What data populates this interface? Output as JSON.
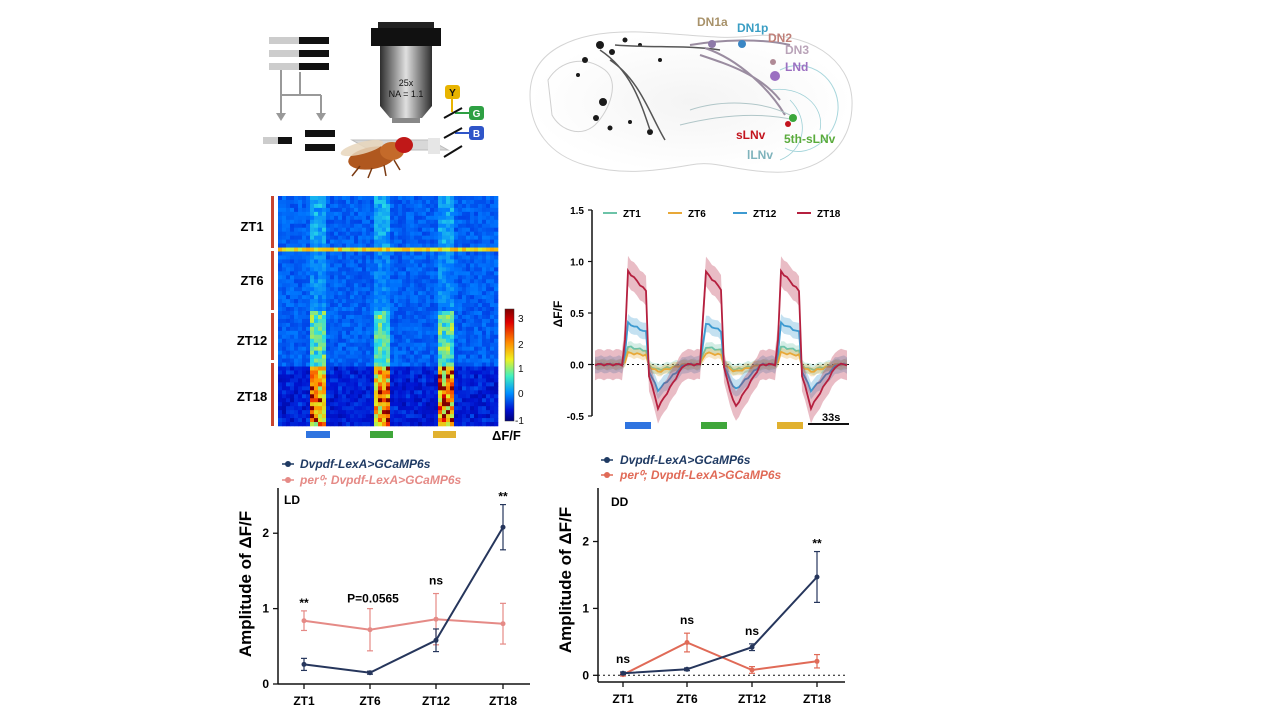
{
  "schematic": {
    "objective_mag": "25x",
    "objective_na": "NA = 1.1",
    "light_labels": [
      "Y",
      "G",
      "B"
    ],
    "light_colors": [
      "#e8b400",
      "#2ea043",
      "#2f55c8"
    ]
  },
  "brain": {
    "labels": [
      {
        "text": "DN1a",
        "color": "#a8926a"
      },
      {
        "text": "DN1p",
        "color": "#3a9ec4"
      },
      {
        "text": "DN2",
        "color": "#c07f78"
      },
      {
        "text": "DN3",
        "color": "#b9a3b8"
      },
      {
        "text": "LNd",
        "color": "#9b6fc1"
      },
      {
        "text": "sLNv",
        "color": "#c3141e"
      },
      {
        "text": "5th-sLNv",
        "color": "#5aab3c"
      },
      {
        "text": "lLNv",
        "color": "#7fb3bc"
      }
    ]
  },
  "heatmap": {
    "row_labels": [
      "ZT1",
      "ZT6",
      "ZT12",
      "ZT18"
    ],
    "colorbar_ticks": [
      "3",
      "2",
      "1",
      "0",
      "-1"
    ],
    "colorbar_label": "ΔF/F",
    "stim_colors": [
      "#2f74e0",
      "#3fa63a",
      "#e1b12f"
    ]
  },
  "trace_chart": {
    "chart_data": {
      "type": "line",
      "ylabel": "ΔF/F",
      "ylim": [
        -0.5,
        1.5
      ],
      "yticks": [
        "1.5",
        "1.0",
        "0.5",
        "0.0",
        "-0.5"
      ],
      "scale_bar": "33s",
      "series": [
        {
          "name": "ZT1",
          "color": "#6cc3a8"
        },
        {
          "name": "ZT6",
          "color": "#e8a838"
        },
        {
          "name": "ZT12",
          "color": "#3d9ad1"
        },
        {
          "name": "ZT18",
          "color": "#b5203f"
        }
      ],
      "stim_colors": [
        "#2f74e0",
        "#3fa63a",
        "#e1b12f"
      ]
    }
  },
  "ld_chart": {
    "legend": [
      {
        "text": "Dvpdf-LexA>GCaMP6s",
        "color": "#1f3a63"
      },
      {
        "text": "per⁰; Dvpdf-LexA>GCaMP6s",
        "color": "#e58a86"
      }
    ],
    "chart_data": {
      "type": "line",
      "panel": "LD",
      "ylabel": "Amplitude of ΔF/F",
      "categories": [
        "ZT1",
        "ZT6",
        "ZT12",
        "ZT18"
      ],
      "ylim": [
        0,
        2.6
      ],
      "yticks": [
        "0",
        "1",
        "2"
      ],
      "series": [
        {
          "name": "Dvpdf-LexA>GCaMP6s",
          "color": "#26365c",
          "values": [
            0.26,
            0.15,
            0.58,
            2.08
          ],
          "err": [
            0.08,
            0.02,
            0.15,
            0.3
          ]
        },
        {
          "name": "per⁰; Dvpdf-LexA>GCaMP6s",
          "color": "#e58a86",
          "values": [
            0.84,
            0.72,
            0.86,
            0.8
          ],
          "err": [
            0.13,
            0.28,
            0.34,
            0.27
          ]
        }
      ],
      "annotations": [
        "**",
        "P=0.0565",
        "ns",
        "**"
      ]
    }
  },
  "dd_chart": {
    "legend": [
      {
        "text": "Dvpdf-LexA>GCaMP6s",
        "color": "#1f3a63"
      },
      {
        "text": "per⁰; Dvpdf-LexA>GCaMP6s",
        "color": "#e06a57"
      }
    ],
    "chart_data": {
      "type": "line",
      "panel": "DD",
      "ylabel": "Amplitude of ΔF/F",
      "categories": [
        "ZT1",
        "ZT6",
        "ZT12",
        "ZT18"
      ],
      "ylim": [
        -0.1,
        2.8
      ],
      "yticks": [
        "0",
        "1",
        "2"
      ],
      "series": [
        {
          "name": "Dvpdf-LexA>GCaMP6s",
          "color": "#26365c",
          "values": [
            0.03,
            0.09,
            0.42,
            1.47
          ],
          "err": [
            0.02,
            0.02,
            0.05,
            0.38
          ]
        },
        {
          "name": "per⁰; Dvpdf-LexA>GCaMP6s",
          "color": "#e06a57",
          "values": [
            0.01,
            0.49,
            0.08,
            0.21
          ],
          "err": [
            0.02,
            0.14,
            0.05,
            0.1
          ]
        }
      ],
      "annotations": [
        "ns",
        "ns",
        "ns",
        "**"
      ]
    }
  }
}
